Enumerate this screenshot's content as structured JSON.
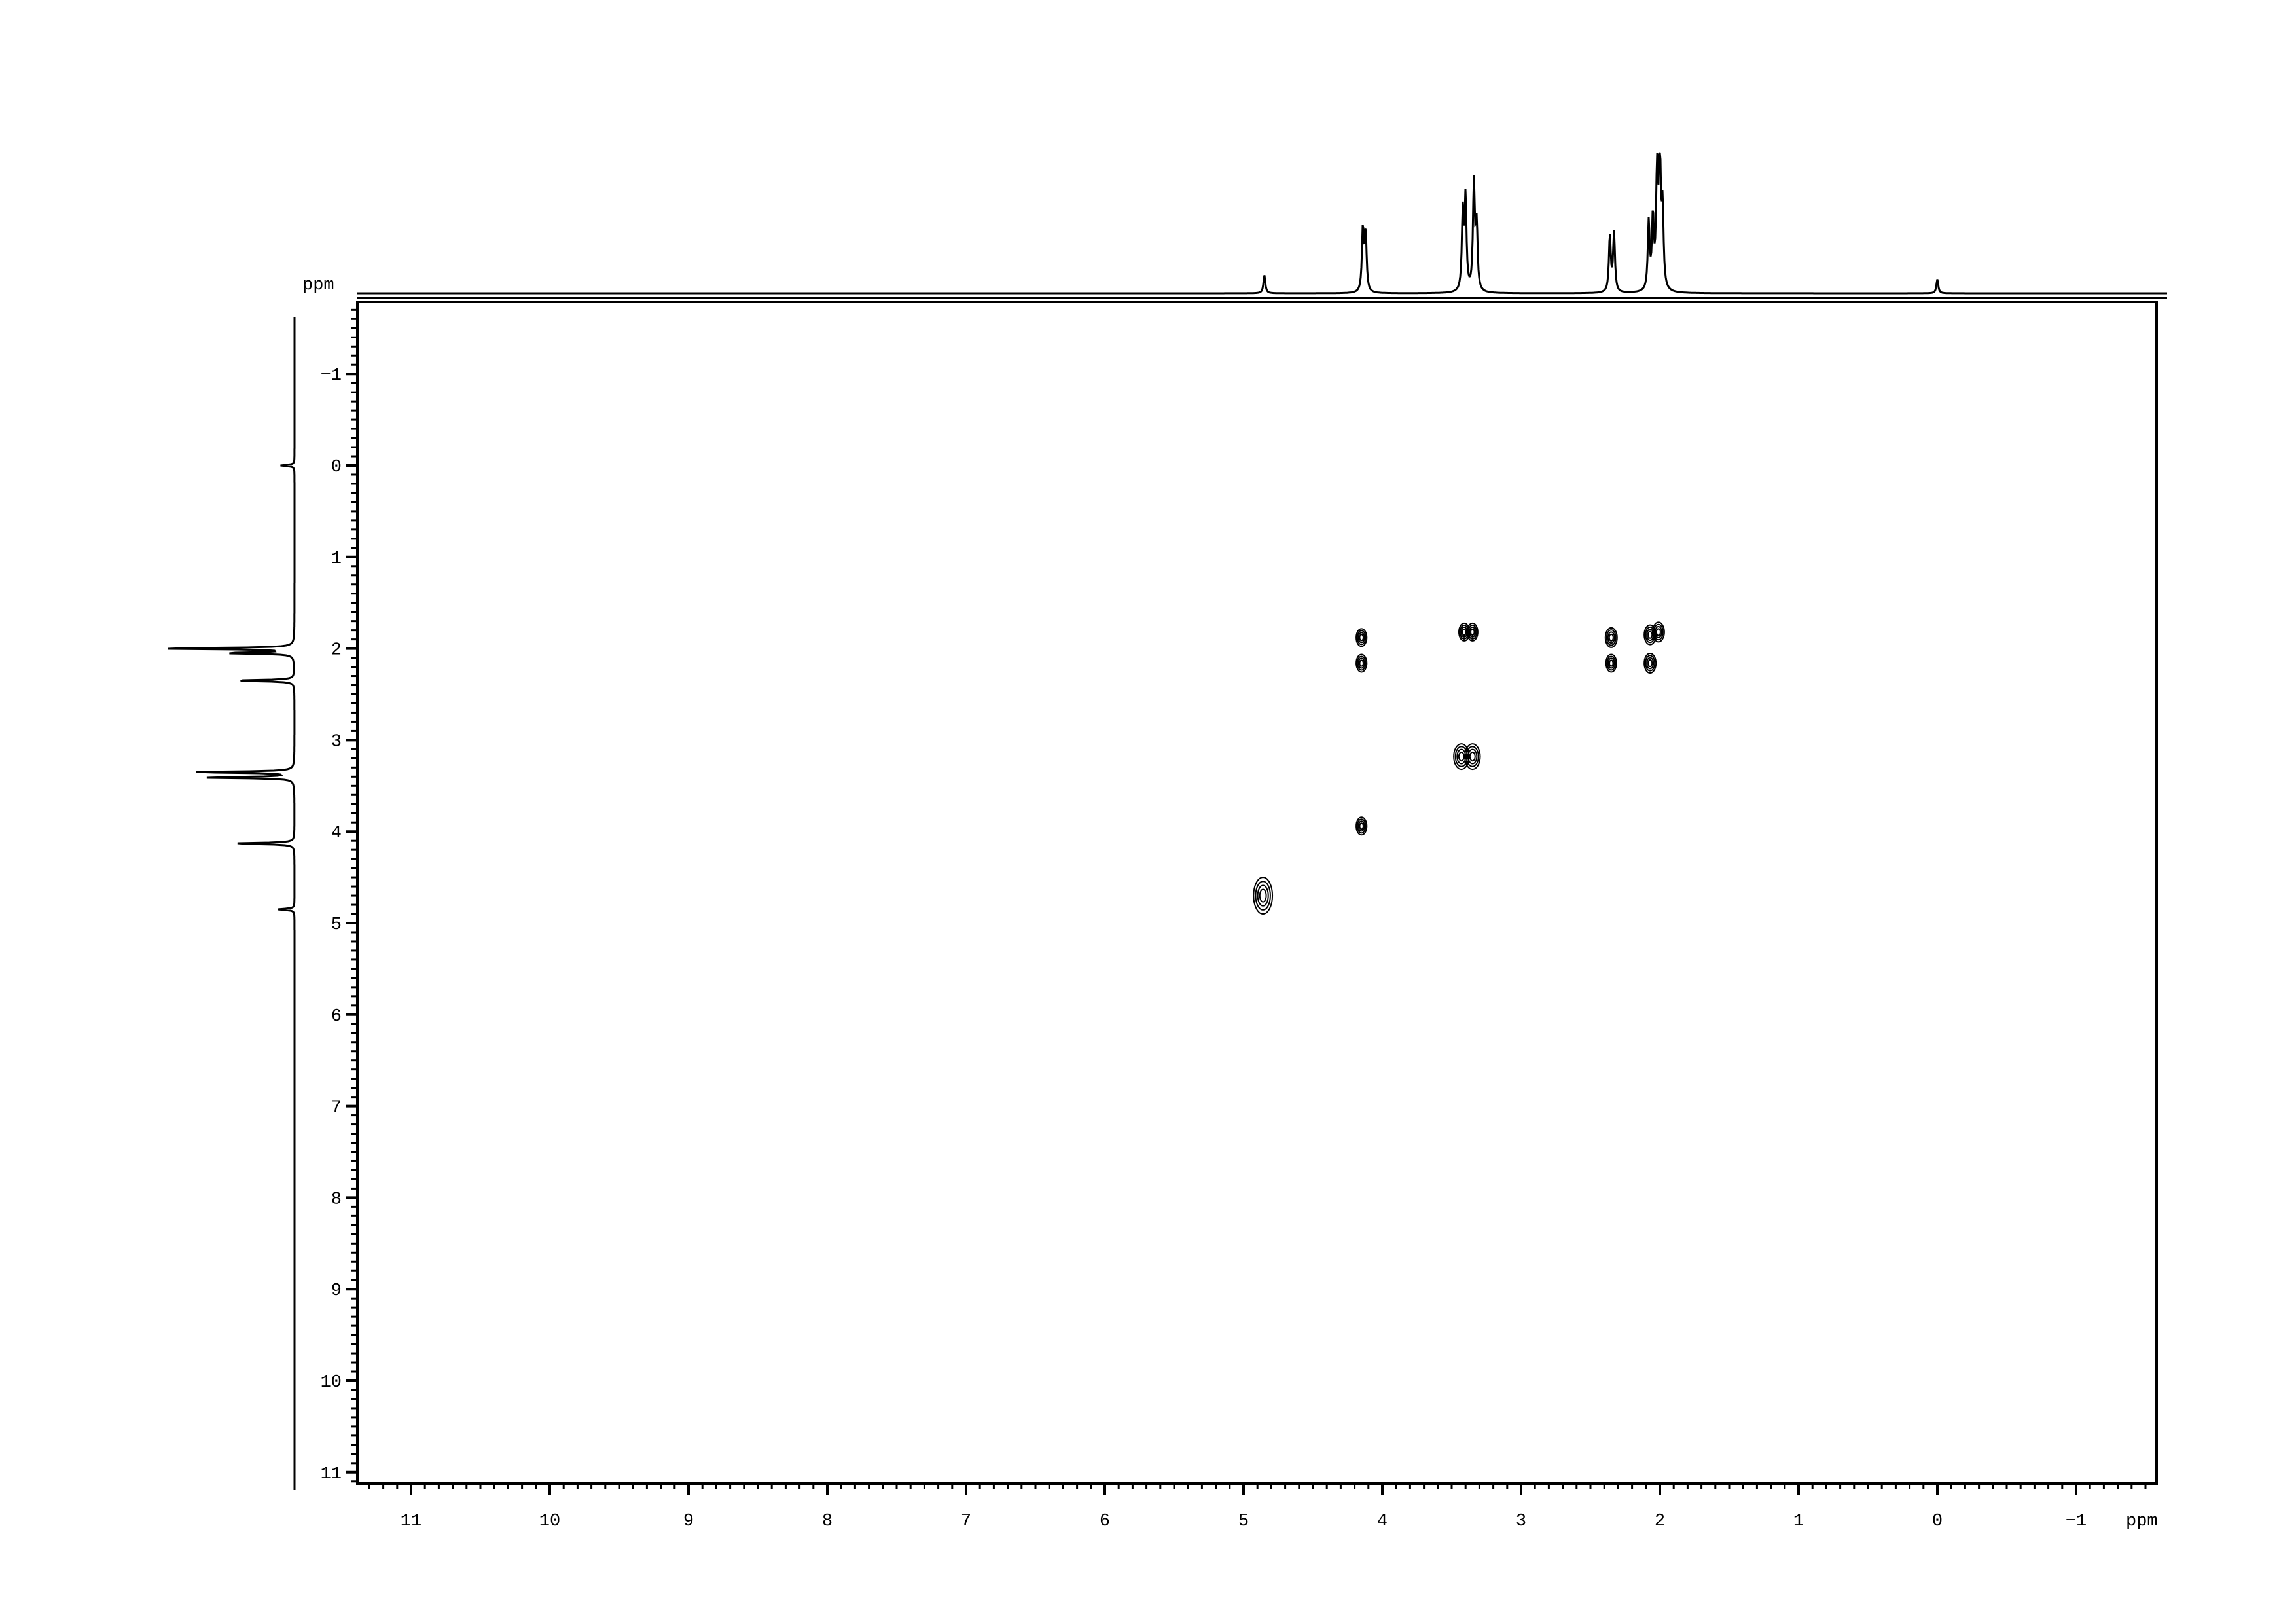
{
  "chart_data": {
    "type": "heatmap",
    "subtype": "2D NMR contour plot (COSY) with 1D projections",
    "x_axis": {
      "label": "ppm",
      "range": [
        11.37,
        -1.6
      ],
      "major_ticks": [
        11,
        10,
        9,
        8,
        7,
        6,
        5,
        4,
        3,
        2,
        1,
        0,
        -1
      ],
      "minor_step": 0.1,
      "reversed": true
    },
    "y_axis": {
      "label": "ppm",
      "range": [
        -1.8,
        11.1
      ],
      "major_ticks": [
        -1,
        0,
        1,
        2,
        3,
        4,
        5,
        6,
        7,
        8,
        9,
        10,
        11
      ],
      "minor_step": 0.1
    },
    "tick_labels_x": [
      "11",
      "10",
      "9",
      "8",
      "7",
      "6",
      "5",
      "4",
      "3",
      "2",
      "1",
      "0",
      "−1"
    ],
    "tick_labels_y": [
      "−1",
      "0",
      "1",
      "2",
      "3",
      "4",
      "5",
      "6",
      "7",
      "8",
      "9",
      "10",
      "11"
    ],
    "grid": false,
    "colors": {
      "contour": "#000000",
      "spectrum": "#000000",
      "background": "#ffffff"
    },
    "top_projection_peaks": [
      {
        "ppm": 4.85,
        "height": 0.13
      },
      {
        "ppm": 4.14,
        "height": 0.45
      },
      {
        "ppm": 4.12,
        "height": 0.42
      },
      {
        "ppm": 3.42,
        "height": 0.55
      },
      {
        "ppm": 3.4,
        "height": 0.65
      },
      {
        "ppm": 3.34,
        "height": 0.76
      },
      {
        "ppm": 3.32,
        "height": 0.45
      },
      {
        "ppm": 2.36,
        "height": 0.4
      },
      {
        "ppm": 2.33,
        "height": 0.42
      },
      {
        "ppm": 2.08,
        "height": 0.48
      },
      {
        "ppm": 2.05,
        "height": 0.5
      },
      {
        "ppm": 2.02,
        "height": 0.8
      },
      {
        "ppm": 2.0,
        "height": 1.0
      },
      {
        "ppm": 1.98,
        "height": 0.55
      },
      {
        "ppm": 0.0,
        "height": 0.1
      }
    ],
    "left_projection_peaks": [
      {
        "ppm": 0.0,
        "height": 0.1
      },
      {
        "ppm": 2.0,
        "height": 1.0
      },
      {
        "ppm": 2.05,
        "height": 0.5
      },
      {
        "ppm": 2.35,
        "height": 0.45
      },
      {
        "ppm": 3.35,
        "height": 0.75
      },
      {
        "ppm": 3.41,
        "height": 0.65
      },
      {
        "ppm": 4.13,
        "height": 0.45
      },
      {
        "ppm": 4.85,
        "height": 0.12
      }
    ],
    "cross_peaks": [
      {
        "f2": 4.86,
        "f1": 4.7,
        "span_f1": 0.4,
        "size": 1.6
      },
      {
        "f2": 4.15,
        "f1": 1.88,
        "size": 0.9
      },
      {
        "f2": 4.15,
        "f1": 2.16,
        "size": 0.9
      },
      {
        "f2": 4.15,
        "f1": 3.94,
        "size": 0.9
      },
      {
        "f2": 3.41,
        "f1": 1.82,
        "size": 0.9
      },
      {
        "f2": 3.35,
        "f1": 1.82,
        "size": 0.9
      },
      {
        "f2": 3.43,
        "f1": 3.18,
        "size": 1.3
      },
      {
        "f2": 3.35,
        "f1": 3.18,
        "size": 1.3
      },
      {
        "f2": 2.35,
        "f1": 1.88,
        "size": 1.0
      },
      {
        "f2": 2.35,
        "f1": 2.16,
        "size": 0.9
      },
      {
        "f2": 2.07,
        "f1": 1.85,
        "size": 1.0
      },
      {
        "f2": 2.01,
        "f1": 1.82,
        "size": 1.0
      },
      {
        "f2": 2.07,
        "f1": 2.16,
        "size": 1.0
      }
    ]
  }
}
